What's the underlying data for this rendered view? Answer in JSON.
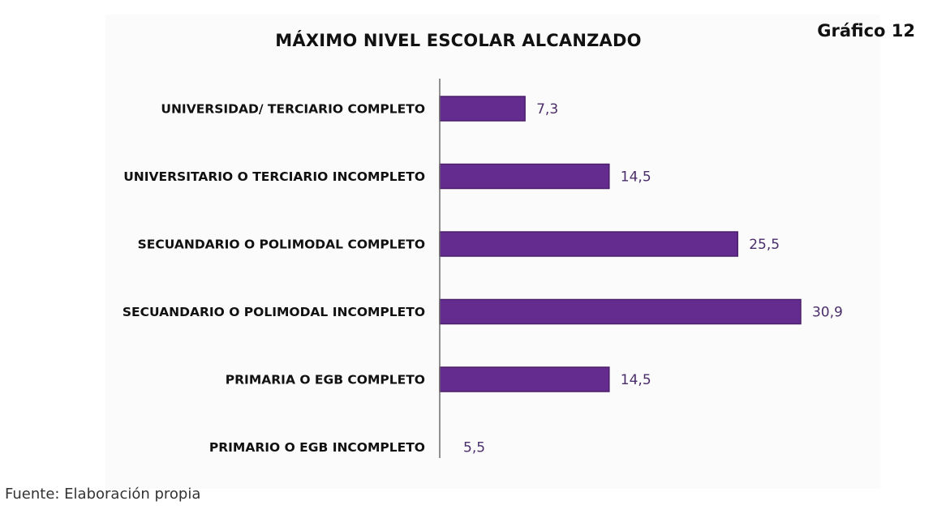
{
  "figure_label": "Gráfico 12",
  "source": "Fuente: Elaboración propia",
  "colors": {
    "bar": "#652c8f",
    "bar_edge": "#4a1f6b",
    "value_text": "#4b2d6b"
  },
  "chart_data": {
    "type": "bar",
    "orientation": "horizontal",
    "title": "MÁXIMO NIVEL ESCOLAR ALCANZADO",
    "xlabel": "",
    "ylabel": "",
    "grid": false,
    "categories": [
      "UNIVERSIDAD/ TERCIARIO COMPLETO",
      "UNIVERSITARIO O TERCIARIO INCOMPLETO",
      "SECUANDARIO O POLIMODAL COMPLETO",
      "SECUANDARIO O POLIMODAL INCOMPLETO",
      "PRIMARIA O EGB COMPLETO",
      "PRIMARIO O EGB INCOMPLETO"
    ],
    "values": [
      7.3,
      14.5,
      25.5,
      30.9,
      14.5,
      5.5
    ],
    "value_labels": [
      "7,3",
      "14,5",
      "25,5",
      "30,9",
      "14,5",
      "5,5"
    ]
  }
}
